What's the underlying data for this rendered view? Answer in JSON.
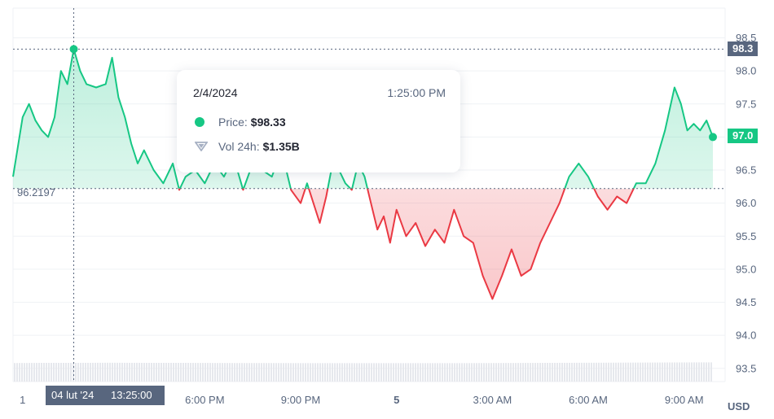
{
  "chart_data": {
    "type": "line",
    "currency": "USD",
    "ylim": [
      93.3,
      98.95
    ],
    "yticks": [
      93.5,
      94.0,
      94.5,
      95.0,
      95.5,
      96.0,
      96.5,
      97.0,
      97.5,
      98.0,
      98.5
    ],
    "xticks": [
      {
        "label": "1",
        "bold": false
      },
      {
        "label": "M",
        "bold": false
      },
      {
        "label": "6:00 PM",
        "bold": false
      },
      {
        "label": "9:00 PM",
        "bold": false
      },
      {
        "label": "5",
        "bold": true
      },
      {
        "label": "3:00 AM",
        "bold": false
      },
      {
        "label": "6:00 AM",
        "bold": false
      },
      {
        "label": "9:00 AM",
        "bold": false
      }
    ],
    "xtick_positions": [
      0.3,
      3.7,
      6.0,
      9.0,
      12.0,
      15.0,
      18.0,
      21.0
    ],
    "baseline": 96.2197,
    "baseline_label": "96.2197",
    "high_label": "98.3",
    "last_label": "97.0",
    "price_hours": [
      0,
      0.3,
      0.5,
      0.7,
      0.9,
      1.1,
      1.3,
      1.5,
      1.7,
      1.9,
      2.1,
      2.3,
      2.6,
      2.9,
      3.1,
      3.3,
      3.5,
      3.7,
      3.9,
      4.1,
      4.4,
      4.7,
      5.0,
      5.2,
      5.4,
      5.7,
      6.0,
      6.3,
      6.6,
      6.9,
      7.2,
      7.5,
      7.8,
      8.1,
      8.4,
      8.7,
      9.0,
      9.2,
      9.4,
      9.6,
      9.8,
      10.0,
      10.2,
      10.4,
      10.6,
      10.8,
      11.0,
      11.2,
      11.4,
      11.6,
      11.8,
      12.0,
      12.3,
      12.6,
      12.9,
      13.2,
      13.5,
      13.8,
      14.1,
      14.4,
      14.7,
      15.0,
      15.3,
      15.6,
      15.9,
      16.2,
      16.5,
      16.8,
      17.1,
      17.4,
      17.7,
      18.0,
      18.3,
      18.6,
      18.9,
      19.2,
      19.5,
      19.8,
      20.1,
      20.4,
      20.7,
      20.9,
      21.1,
      21.3,
      21.5,
      21.7,
      21.9
    ],
    "price_values": [
      96.4,
      97.3,
      97.5,
      97.25,
      97.1,
      97.0,
      97.3,
      98.0,
      97.8,
      98.33,
      98.0,
      97.8,
      97.75,
      97.8,
      98.2,
      97.6,
      97.3,
      96.9,
      96.6,
      96.8,
      96.5,
      96.3,
      96.6,
      96.2,
      96.4,
      96.5,
      96.3,
      96.6,
      96.4,
      96.7,
      96.2,
      96.6,
      96.5,
      96.4,
      96.8,
      96.2,
      96.0,
      96.3,
      96.0,
      95.7,
      96.1,
      96.6,
      96.5,
      96.3,
      96.2,
      96.6,
      96.4,
      96.0,
      95.6,
      95.8,
      95.4,
      95.9,
      95.5,
      95.7,
      95.35,
      95.6,
      95.4,
      95.9,
      95.5,
      95.4,
      94.9,
      94.55,
      94.9,
      95.3,
      94.9,
      95.0,
      95.4,
      95.7,
      96.0,
      96.4,
      96.6,
      96.4,
      96.1,
      95.9,
      96.1,
      96.0,
      96.3,
      96.3,
      96.6,
      97.1,
      97.75,
      97.5,
      97.1,
      97.2,
      97.1,
      97.25,
      97.0
    ],
    "volume_hours": [
      0,
      1,
      2,
      3,
      4,
      5,
      6,
      7,
      8,
      9,
      10,
      11,
      12,
      13,
      14,
      15,
      16,
      17,
      18,
      19,
      20,
      21,
      21.9
    ],
    "volume_values": [
      1.33,
      1.35,
      1.35,
      1.36,
      1.35,
      1.35,
      1.34,
      1.33,
      1.33,
      1.32,
      1.32,
      1.32,
      1.32,
      1.32,
      1.32,
      1.33,
      1.34,
      1.35,
      1.36,
      1.37,
      1.38,
      1.39,
      1.4
    ],
    "volume_max": 5.2
  },
  "tooltip": {
    "date": "2/4/2024",
    "time": "1:25:00 PM",
    "price_label": "Price:",
    "price_value": "$98.33",
    "vol_label": "Vol 24h:",
    "vol_value": "$1.35B"
  },
  "crosshair": {
    "hour": 1.9,
    "date_label": "04 lut '24",
    "time_label": "13:25:00"
  },
  "colors": {
    "up": "#16c784",
    "down": "#ea3943",
    "grid": "#eff2f5",
    "axis_text": "#58667e",
    "volume": "#e6e8ed"
  }
}
